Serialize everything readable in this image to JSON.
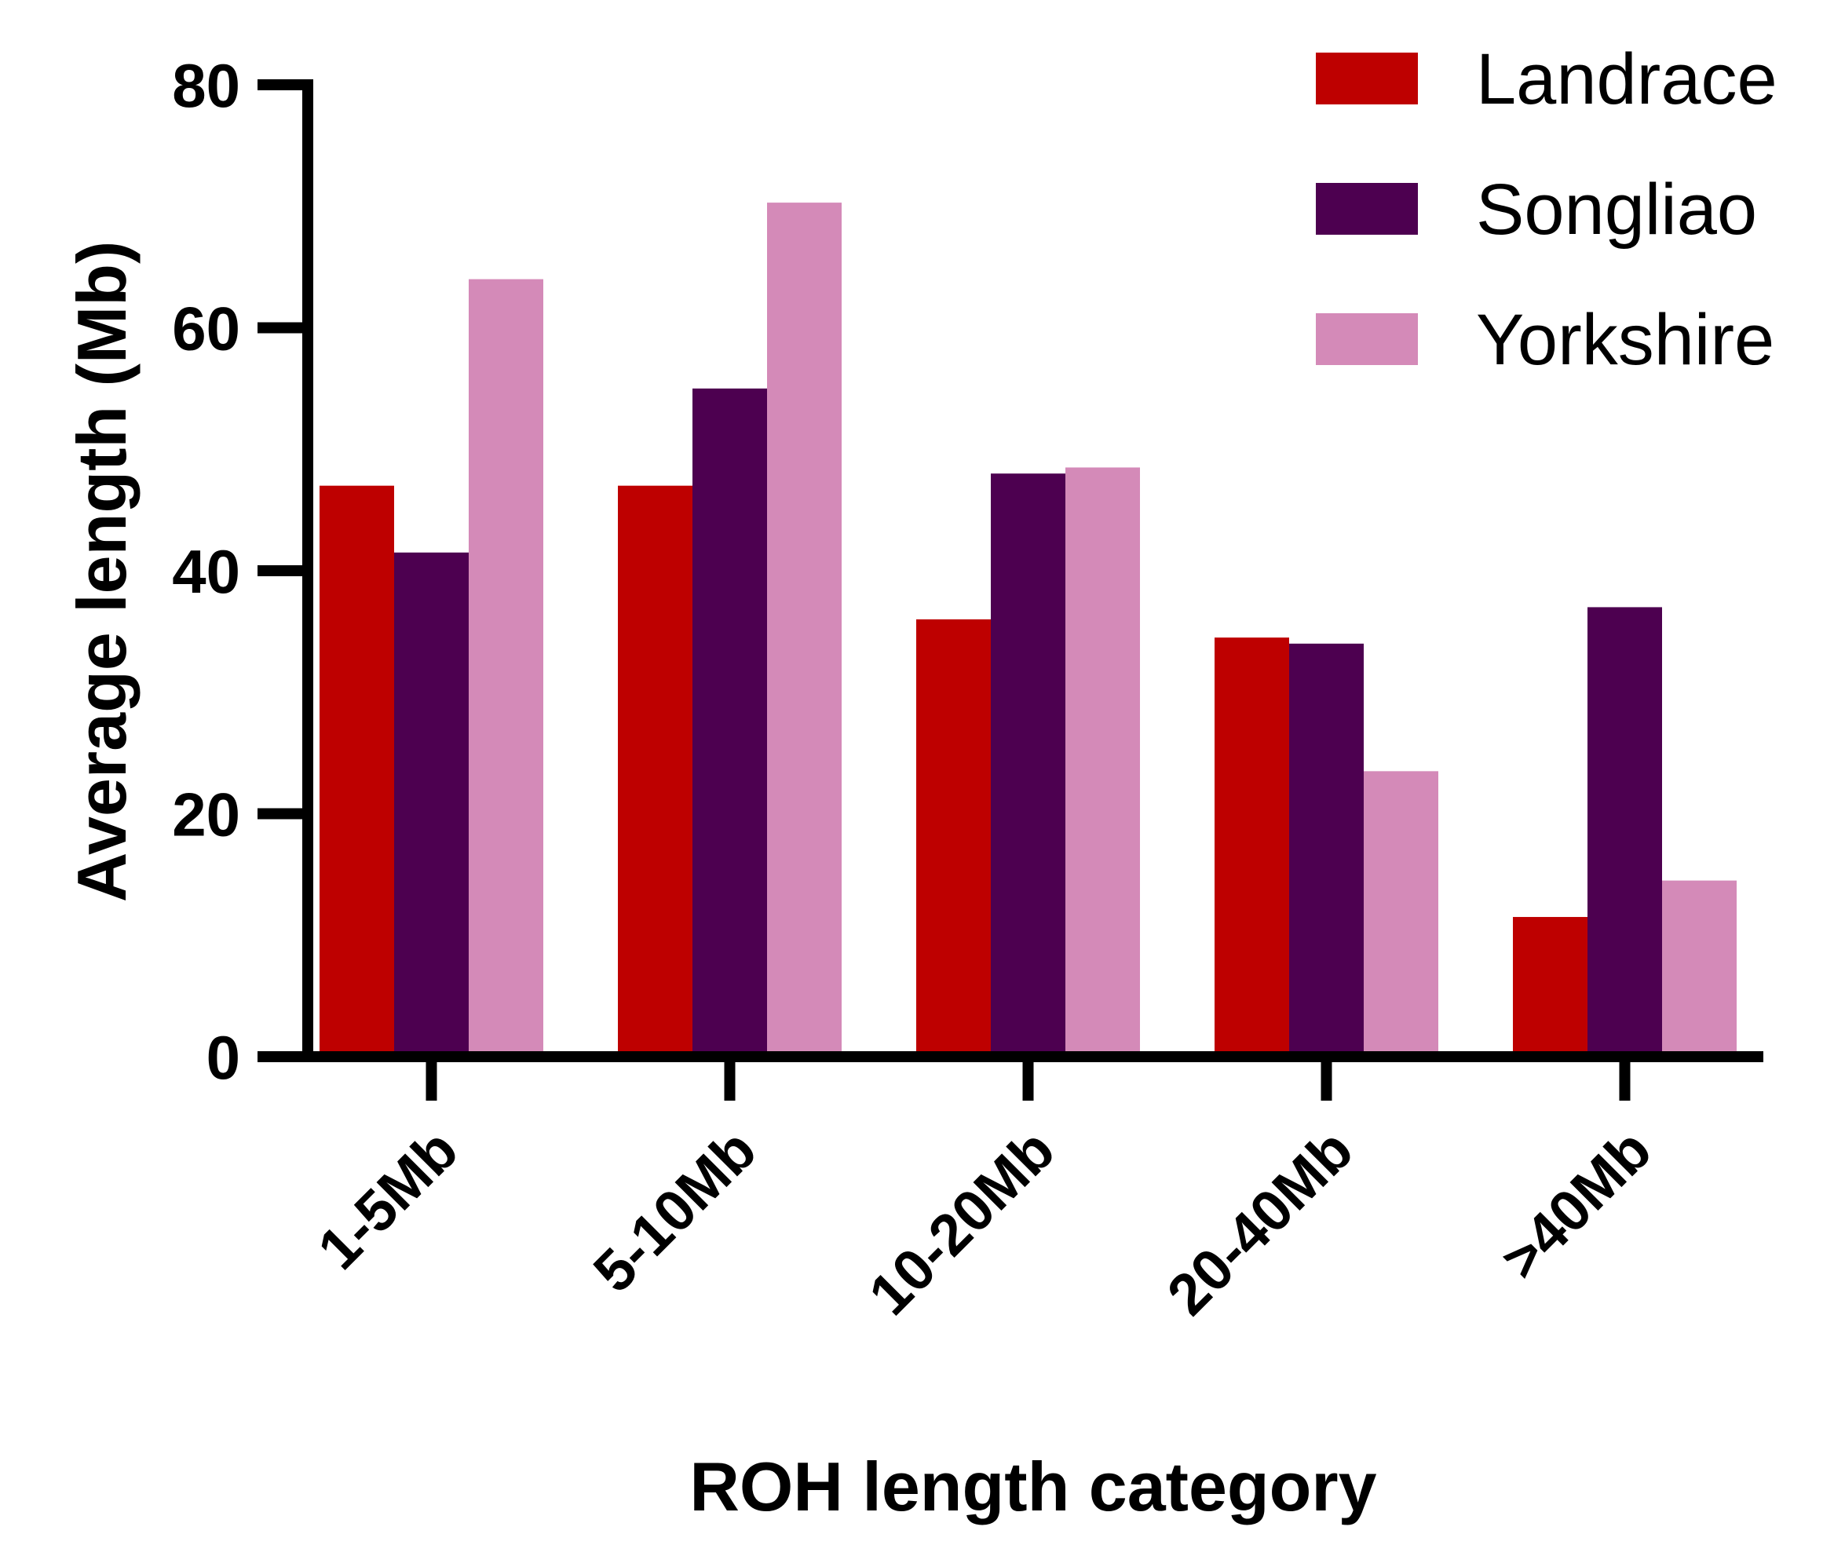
{
  "chart_data": {
    "type": "bar",
    "title": "",
    "xlabel": "ROH length category",
    "ylabel": "Average length (Mb)",
    "ylim": [
      0,
      80
    ],
    "yticks": [
      0,
      20,
      40,
      60,
      80
    ],
    "categories": [
      "1-5Mb",
      "5-10Mb",
      "10-20Mb",
      "20-40Mb",
      ">40Mb"
    ],
    "series": [
      {
        "name": "Landrace",
        "color": "#BE0000",
        "values": [
          47,
          47,
          36,
          34.5,
          11.5
        ]
      },
      {
        "name": "Songliao",
        "color": "#4D0050",
        "values": [
          41.5,
          55,
          48,
          34,
          37
        ]
      },
      {
        "name": "Yorkshire",
        "color": "#D48AB8",
        "values": [
          64,
          70.3,
          48.5,
          23.5,
          14.5
        ]
      }
    ],
    "grid": false,
    "legend_position": "top-right"
  }
}
